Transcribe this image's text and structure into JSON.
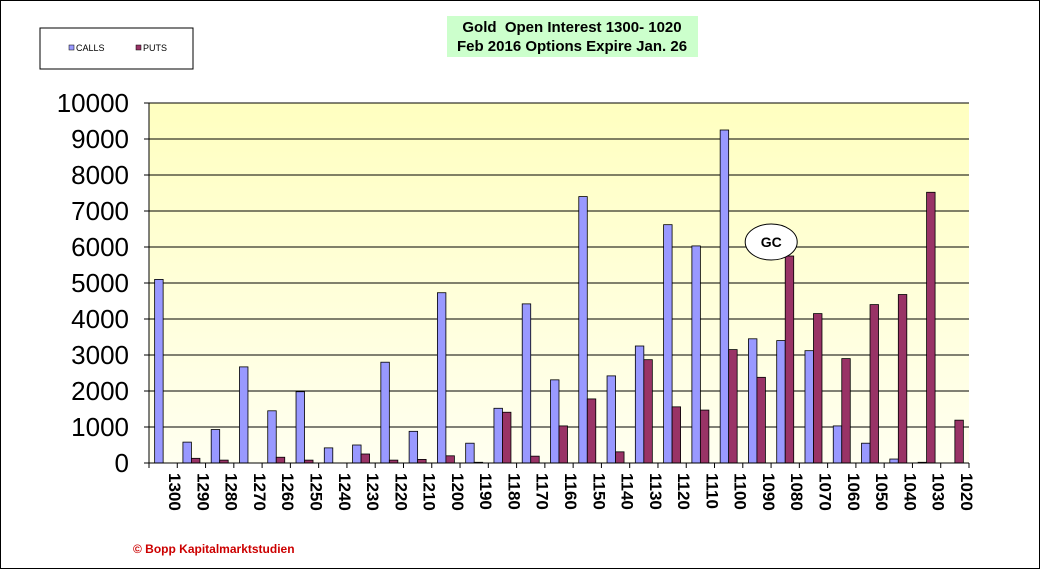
{
  "chart_data": {
    "type": "bar",
    "title_line1": "Gold  Open Interest 1300- 1020",
    "title_line2": "Feb 2016 Options Expire Jan. 26",
    "xlabel": "",
    "ylabel": "",
    "ylim": [
      0,
      10000
    ],
    "yticks": [
      "0",
      "1000",
      "2000",
      "3000",
      "4000",
      "5000",
      "6000",
      "7000",
      "8000",
      "9000",
      "10000"
    ],
    "categories": [
      "1300",
      "1290",
      "1280",
      "1270",
      "1260",
      "1250",
      "1240",
      "1230",
      "1220",
      "1210",
      "1200",
      "1190",
      "1180",
      "1170",
      "1160",
      "1150",
      "1140",
      "1130",
      "1120",
      "1110",
      "1100",
      "1090",
      "1080",
      "1070",
      "1060",
      "1050",
      "1040",
      "1030",
      "1020"
    ],
    "series": [
      {
        "name": "CALLS",
        "color": "#9999ff",
        "values": [
          5100,
          580,
          930,
          2670,
          1450,
          1980,
          420,
          500,
          2800,
          880,
          4730,
          550,
          1520,
          4420,
          2310,
          7400,
          2420,
          3250,
          6620,
          6030,
          9250,
          3450,
          3400,
          3120,
          1030,
          550,
          110,
          20,
          0
        ]
      },
      {
        "name": "PUTS",
        "color": "#993366",
        "values": [
          0,
          130,
          80,
          0,
          160,
          80,
          0,
          250,
          80,
          100,
          200,
          20,
          1410,
          190,
          1030,
          1780,
          310,
          2870,
          1560,
          1470,
          3150,
          2380,
          5750,
          4150,
          2900,
          4400,
          4680,
          7520,
          1190
        ]
      }
    ],
    "legend_placement": "top-left",
    "grid": true,
    "plot_background": [
      "#ffffc0",
      "#fffff0"
    ]
  },
  "annotation": {
    "label": "GC",
    "category": "1080"
  },
  "copyright": "© Bopp Kapitalmarktstudien"
}
